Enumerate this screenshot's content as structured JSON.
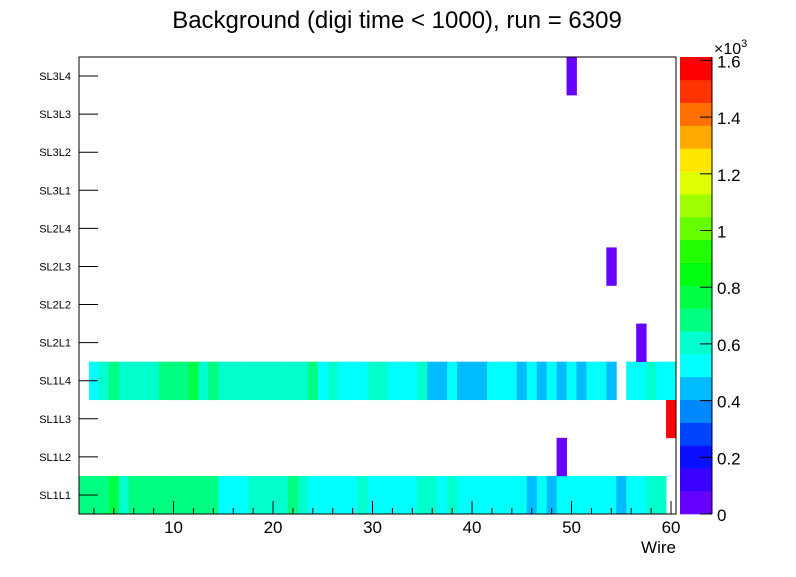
{
  "chart_data": {
    "type": "heatmap",
    "title": "Background (digi time < 1000), run = 6309",
    "xlabel": "Wire",
    "ylabel": "",
    "xlim": [
      0.5,
      60.5
    ],
    "x_ticks": [
      "10",
      "20",
      "30",
      "40",
      "50",
      "60"
    ],
    "y_categories": [
      "SL1L1",
      "SL1L2",
      "SL1L3",
      "SL1L4",
      "SL2L1",
      "SL2L2",
      "SL2L3",
      "SL2L4",
      "SL3L1",
      "SL3L2",
      "SL3L3",
      "SL3L4"
    ],
    "zlim": [
      0,
      1612
    ],
    "z_multiplier_label": "×10",
    "z_multiplier_exp": "3",
    "z_ticks": [
      "0",
      "0.2",
      "0.4",
      "0.6",
      "0.8",
      "1",
      "1.2",
      "1.4",
      "1.6"
    ],
    "palette": [
      "#6600ff",
      "#3a00ff",
      "#0a10ff",
      "#0044ff",
      "#0088ff",
      "#00bbff",
      "#00ffff",
      "#00ffcc",
      "#00ff80",
      "#00ff44",
      "#00ff10",
      "#22ff00",
      "#66ff00",
      "#a0ff00",
      "#e0ff00",
      "#ffe600",
      "#ffa800",
      "#ff7000",
      "#ff3300",
      "#ff0000"
    ],
    "rows": {
      "SL1L1": [
        690,
        690,
        690,
        770,
        605,
        690,
        690,
        690,
        690,
        690,
        690,
        690,
        690,
        690,
        525,
        525,
        525,
        605,
        605,
        605,
        605,
        690,
        605,
        525,
        525,
        525,
        525,
        525,
        605,
        525,
        525,
        525,
        525,
        525,
        605,
        605,
        525,
        605,
        525,
        525,
        525,
        525,
        525,
        525,
        525,
        440,
        525,
        440,
        525,
        525,
        525,
        525,
        525,
        525,
        440,
        525,
        525,
        605,
        605,
        null
      ],
      "SL1L2": {
        "49": 40
      },
      "SL1L3": {
        "60": 1600
      },
      "SL1L4": [
        null,
        525,
        605,
        690,
        605,
        605,
        605,
        605,
        690,
        690,
        690,
        770,
        605,
        690,
        605,
        605,
        605,
        605,
        605,
        605,
        605,
        605,
        605,
        690,
        525,
        605,
        525,
        525,
        525,
        605,
        605,
        525,
        525,
        525,
        605,
        440,
        440,
        525,
        440,
        440,
        440,
        525,
        525,
        525,
        440,
        525,
        440,
        525,
        440,
        525,
        440,
        525,
        525,
        440,
        null,
        525,
        525,
        605,
        525,
        525
      ],
      "SL2L1": {
        "57": 40
      },
      "SL2L3": {
        "54": 40
      },
      "SL3L4": {
        "50": 40
      }
    }
  }
}
